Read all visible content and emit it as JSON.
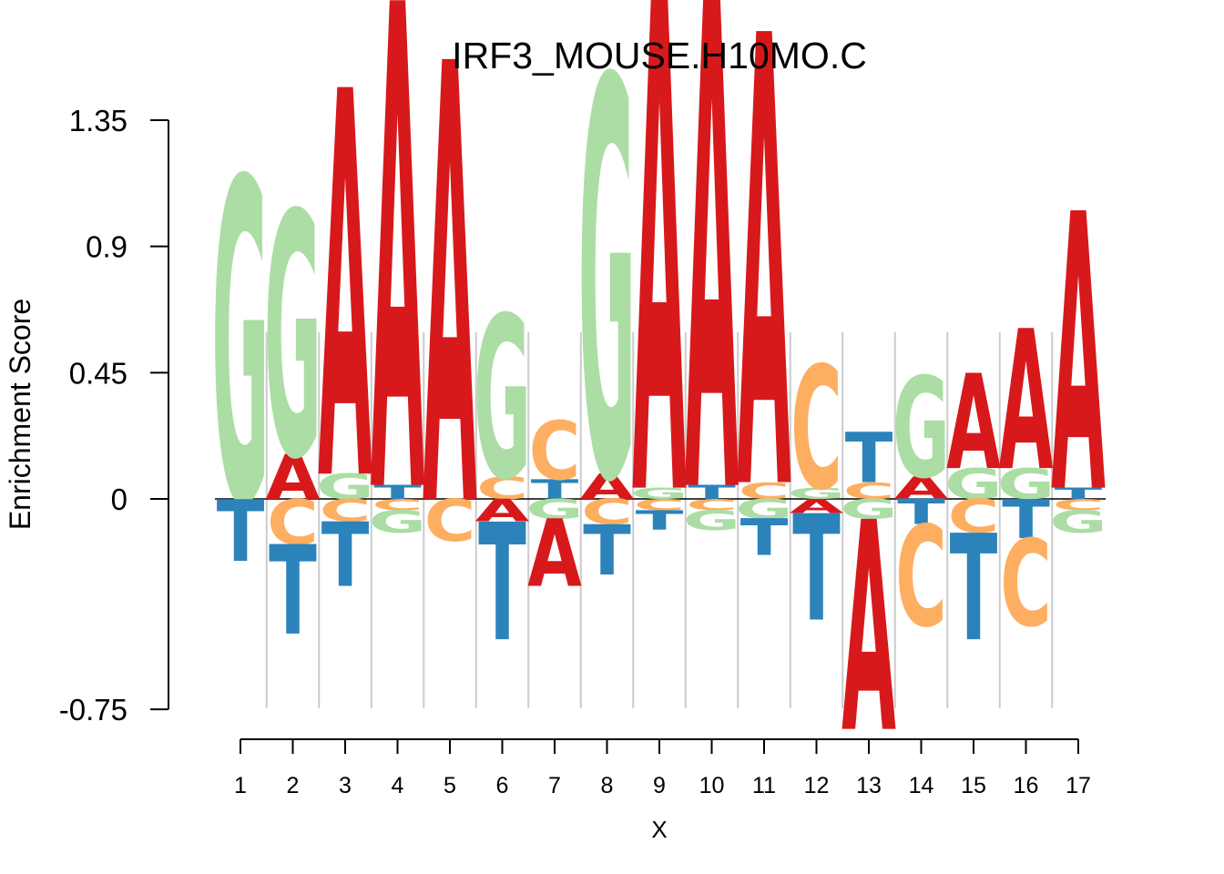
{
  "chart_data": {
    "type": "sequence-logo",
    "title": "IRF3_MOUSE.H10MO.C",
    "xlabel": "X",
    "ylabel": "Enrichment Score",
    "ylim": [
      -0.75,
      1.35
    ],
    "yticks": [
      -0.75,
      0,
      0.45,
      0.9,
      1.35
    ],
    "ytick_labels": [
      "-0.75",
      "0",
      "0.45",
      "0.9",
      "1.35"
    ],
    "positions": [
      "1",
      "2",
      "3",
      "4",
      "5",
      "6",
      "7",
      "8",
      "9",
      "10",
      "11",
      "12",
      "13",
      "14",
      "15",
      "16",
      "17"
    ],
    "colors": {
      "A": "#d7191c",
      "C": "#fdae61",
      "G": "#abdda4",
      "T": "#2b83ba"
    },
    "grid": true,
    "columns": [
      {
        "pos": "1",
        "up": [
          [
            "G",
            1.15
          ]
        ],
        "down": [
          [
            "T",
            -0.22
          ]
        ]
      },
      {
        "pos": "2",
        "up": [
          [
            "G",
            0.87
          ],
          [
            "A",
            0.16
          ]
        ],
        "down": [
          [
            "C",
            -0.16
          ],
          [
            "T",
            -0.32
          ]
        ]
      },
      {
        "pos": "3",
        "up": [
          [
            "A",
            1.38
          ],
          [
            "G",
            0.09
          ]
        ],
        "down": [
          [
            "C",
            -0.08
          ],
          [
            "T",
            -0.23
          ]
        ]
      },
      {
        "pos": "4",
        "up": [
          [
            "A",
            1.73
          ],
          [
            "T",
            0.05
          ]
        ],
        "down": [
          [
            "C",
            -0.04
          ],
          [
            "G",
            -0.08
          ]
        ]
      },
      {
        "pos": "5",
        "up": [
          [
            "A",
            1.57
          ]
        ],
        "down": [
          [
            "C",
            -0.15
          ]
        ]
      },
      {
        "pos": "6",
        "up": [
          [
            "G",
            0.58
          ],
          [
            "C",
            0.08
          ]
        ],
        "down": [
          [
            "A",
            -0.08
          ],
          [
            "T",
            -0.42
          ]
        ]
      },
      {
        "pos": "7",
        "up": [
          [
            "C",
            0.21
          ],
          [
            "T",
            0.07
          ]
        ],
        "down": [
          [
            "G",
            -0.07
          ],
          [
            "A",
            -0.24
          ]
        ]
      },
      {
        "pos": "8",
        "up": [
          [
            "G",
            1.42
          ],
          [
            "A",
            0.09
          ]
        ],
        "down": [
          [
            "C",
            -0.09
          ],
          [
            "T",
            -0.18
          ]
        ]
      },
      {
        "pos": "9",
        "up": [
          [
            "A",
            1.8
          ],
          [
            "G",
            0.04
          ]
        ],
        "down": [
          [
            "C",
            -0.04
          ],
          [
            "T",
            -0.07
          ]
        ]
      },
      {
        "pos": "10",
        "up": [
          [
            "A",
            1.8
          ],
          [
            "T",
            0.05
          ]
        ],
        "down": [
          [
            "C",
            -0.04
          ],
          [
            "G",
            -0.07
          ]
        ]
      },
      {
        "pos": "11",
        "up": [
          [
            "A",
            1.61
          ],
          [
            "C",
            0.06
          ]
        ],
        "down": [
          [
            "G",
            -0.07
          ],
          [
            "T",
            -0.13
          ]
        ]
      },
      {
        "pos": "12",
        "up": [
          [
            "C",
            0.44
          ],
          [
            "G",
            0.04
          ]
        ],
        "down": [
          [
            "A",
            -0.05
          ],
          [
            "T",
            -0.38
          ]
        ]
      },
      {
        "pos": "13",
        "up": [
          [
            "T",
            0.18
          ],
          [
            "C",
            0.06
          ]
        ],
        "down": [
          [
            "G",
            -0.07
          ],
          [
            "A",
            -0.75
          ]
        ]
      },
      {
        "pos": "14",
        "up": [
          [
            "G",
            0.36
          ],
          [
            "A",
            0.08
          ]
        ],
        "down": [
          [
            "T",
            -0.09
          ],
          [
            "C",
            -0.36
          ]
        ]
      },
      {
        "pos": "15",
        "up": [
          [
            "A",
            0.34
          ],
          [
            "G",
            0.11
          ]
        ],
        "down": [
          [
            "C",
            -0.12
          ],
          [
            "T",
            -0.38
          ]
        ]
      },
      {
        "pos": "16",
        "up": [
          [
            "A",
            0.5
          ],
          [
            "G",
            0.11
          ]
        ],
        "down": [
          [
            "T",
            -0.14
          ],
          [
            "C",
            -0.31
          ]
        ]
      },
      {
        "pos": "17",
        "up": [
          [
            "A",
            0.99
          ],
          [
            "T",
            0.04
          ]
        ],
        "down": [
          [
            "C",
            -0.04
          ],
          [
            "G",
            -0.08
          ]
        ]
      }
    ]
  }
}
